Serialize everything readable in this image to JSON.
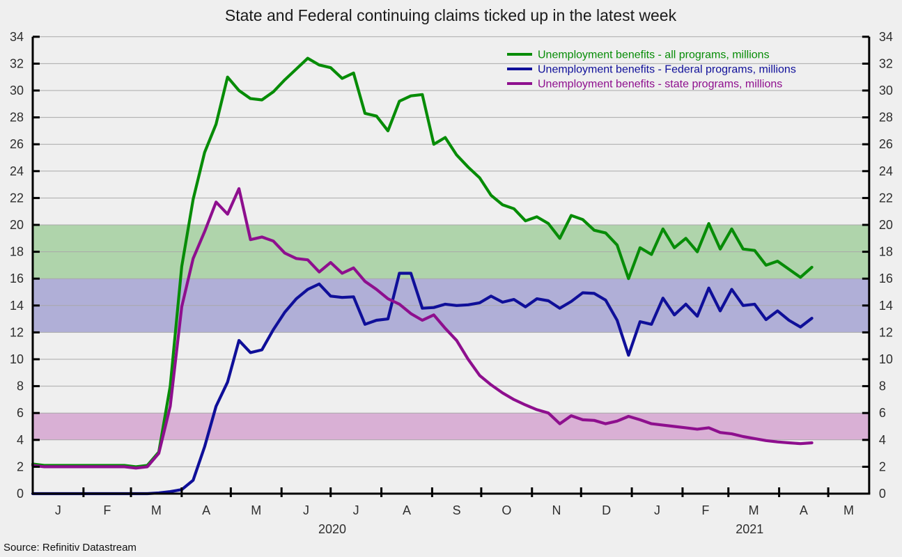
{
  "title": "State and Federal continuing claims ticked up in the latest week",
  "source_note": "Source: Refinitiv Datastream",
  "chart_data": {
    "type": "line",
    "title": "State and Federal continuing claims ticked up in the latest week",
    "legend_position": "top-right",
    "grid": true,
    "colors": {
      "plot_bg": "#efefef",
      "grid": "#a9a9a9",
      "axis": "#000000",
      "band_green": "#afd4ab",
      "band_blue": "#b0afd7",
      "band_pink": "#d9b0d5"
    },
    "y_axis": {
      "min": 0,
      "max": 34,
      "tick_step": 2,
      "tick_labels": [
        "0",
        "2",
        "4",
        "6",
        "8",
        "10",
        "12",
        "14",
        "16",
        "18",
        "20",
        "22",
        "24",
        "26",
        "28",
        "30",
        "32",
        "34"
      ]
    },
    "x_axis": {
      "month_labels": [
        "J",
        "F",
        "M",
        "A",
        "M",
        "J",
        "J",
        "A",
        "S",
        "O",
        "N",
        "D",
        "J",
        "F",
        "M",
        "A",
        "M"
      ],
      "month_start_days": [
        0,
        31,
        60,
        91,
        121,
        152,
        182,
        213,
        244,
        274,
        305,
        335,
        366,
        397,
        425,
        456,
        486
      ],
      "axis_end_day": 511,
      "year_labels": [
        {
          "label": "2020",
          "center_day": 183
        },
        {
          "label": "2021",
          "center_day": 438
        }
      ]
    },
    "bands": [
      {
        "from": 16,
        "to": 20,
        "color_key": "band_green"
      },
      {
        "from": 12,
        "to": 16,
        "color_key": "band_blue"
      },
      {
        "from": 4,
        "to": 6,
        "color_key": "band_pink"
      }
    ],
    "weekly": {
      "start_day": 0,
      "step_days": 7
    },
    "series": [
      {
        "name": "Unemployment benefits - all programs, millions",
        "color": "#078c07",
        "values": [
          2.2,
          2.1,
          2.1,
          2.1,
          2.1,
          2.1,
          2.1,
          2.1,
          2.1,
          2.0,
          2.1,
          3.1,
          8.0,
          16.9,
          21.9,
          25.4,
          27.5,
          31.0,
          30.0,
          29.4,
          29.3,
          29.9,
          30.8,
          31.6,
          32.4,
          31.9,
          31.7,
          30.9,
          31.3,
          28.3,
          28.1,
          27.0,
          29.2,
          29.6,
          29.7,
          26.0,
          26.5,
          25.2,
          24.3,
          23.5,
          22.2,
          21.5,
          21.2,
          20.3,
          20.6,
          20.1,
          19.0,
          20.7,
          20.4,
          19.6,
          19.4,
          18.5,
          16.0,
          18.3,
          17.8,
          19.7,
          18.3,
          19.0,
          18.0,
          20.1,
          18.2,
          19.7,
          18.2,
          18.1,
          17.0,
          17.3,
          16.7,
          16.1,
          16.85
        ]
      },
      {
        "name": "Unemployment benefits - Federal programs, millions",
        "color": "#0f0f99",
        "values": [
          0,
          0,
          0,
          0,
          0,
          0,
          0,
          0,
          0,
          0,
          0,
          0.05,
          0.15,
          0.3,
          1.0,
          3.5,
          6.5,
          8.3,
          11.4,
          10.5,
          10.7,
          12.2,
          13.5,
          14.5,
          15.2,
          15.6,
          14.7,
          14.6,
          14.65,
          12.6,
          12.9,
          13.0,
          16.4,
          16.4,
          13.8,
          13.85,
          14.1,
          14.0,
          14.05,
          14.2,
          14.7,
          14.25,
          14.45,
          13.9,
          14.5,
          14.35,
          13.8,
          14.3,
          14.95,
          14.9,
          14.4,
          12.9,
          10.3,
          12.8,
          12.6,
          14.55,
          13.3,
          14.1,
          13.2,
          15.3,
          13.6,
          15.2,
          14.0,
          14.1,
          12.95,
          13.6,
          12.9,
          12.4,
          13.05
        ]
      },
      {
        "name": "Unemployment benefits - state programs, millions",
        "color": "#8e0f8e",
        "values": [
          2.1,
          2.0,
          2.0,
          2.0,
          2.0,
          2.0,
          2.0,
          2.0,
          2.0,
          1.9,
          2.0,
          3.0,
          6.5,
          13.9,
          17.5,
          19.5,
          21.7,
          20.8,
          22.7,
          18.9,
          19.1,
          18.8,
          17.9,
          17.5,
          17.4,
          16.5,
          17.2,
          16.4,
          16.8,
          15.8,
          15.2,
          14.5,
          14.1,
          13.4,
          12.9,
          13.3,
          12.3,
          11.4,
          10.0,
          8.8,
          8.1,
          7.5,
          7.0,
          6.6,
          6.25,
          6.0,
          5.2,
          5.8,
          5.5,
          5.45,
          5.2,
          5.4,
          5.75,
          5.5,
          5.2,
          5.1,
          5.0,
          4.9,
          4.8,
          4.9,
          4.55,
          4.45,
          4.25,
          4.1,
          3.95,
          3.85,
          3.78,
          3.72,
          3.78
        ]
      }
    ]
  }
}
